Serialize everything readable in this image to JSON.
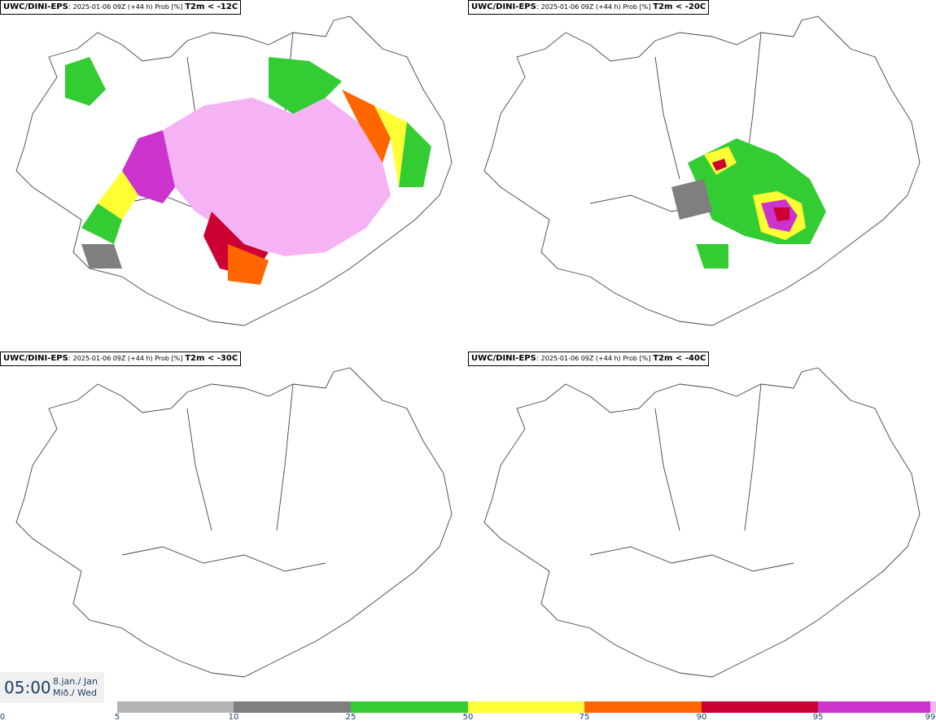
{
  "panels": [
    {
      "model": "UWC/DINI-EPS",
      "run": "2025-01-06 09Z (+44 h) Prob [%]",
      "var": "T2m < -12C"
    },
    {
      "model": "UWC/DINI-EPS",
      "run": "2025-01-06 09Z (+44 h) Prob [%]",
      "var": "T2m < -20C"
    },
    {
      "model": "UWC/DINI-EPS",
      "run": "2025-01-06 09Z (+44 h) Prob [%]",
      "var": "T2m < -30C"
    },
    {
      "model": "UWC/DINI-EPS",
      "run": "2025-01-06 09Z (+44 h) Prob [%]",
      "var": "T2m < -40C"
    }
  ],
  "valid": {
    "time": "05:00",
    "date_line1": "8.jan./ Jan",
    "date_line2": "Mið./ Wed"
  },
  "colorbar": {
    "ticks": [
      "0",
      "5",
      "10",
      "25",
      "50",
      "75",
      "90",
      "95",
      "99"
    ],
    "colors": [
      "#ffffff",
      "#b4b4b4",
      "#7f7f7f",
      "#33cc33",
      "#ffff33",
      "#ff6600",
      "#cc0033",
      "#cc33cc",
      "#f5b3f5"
    ]
  }
}
